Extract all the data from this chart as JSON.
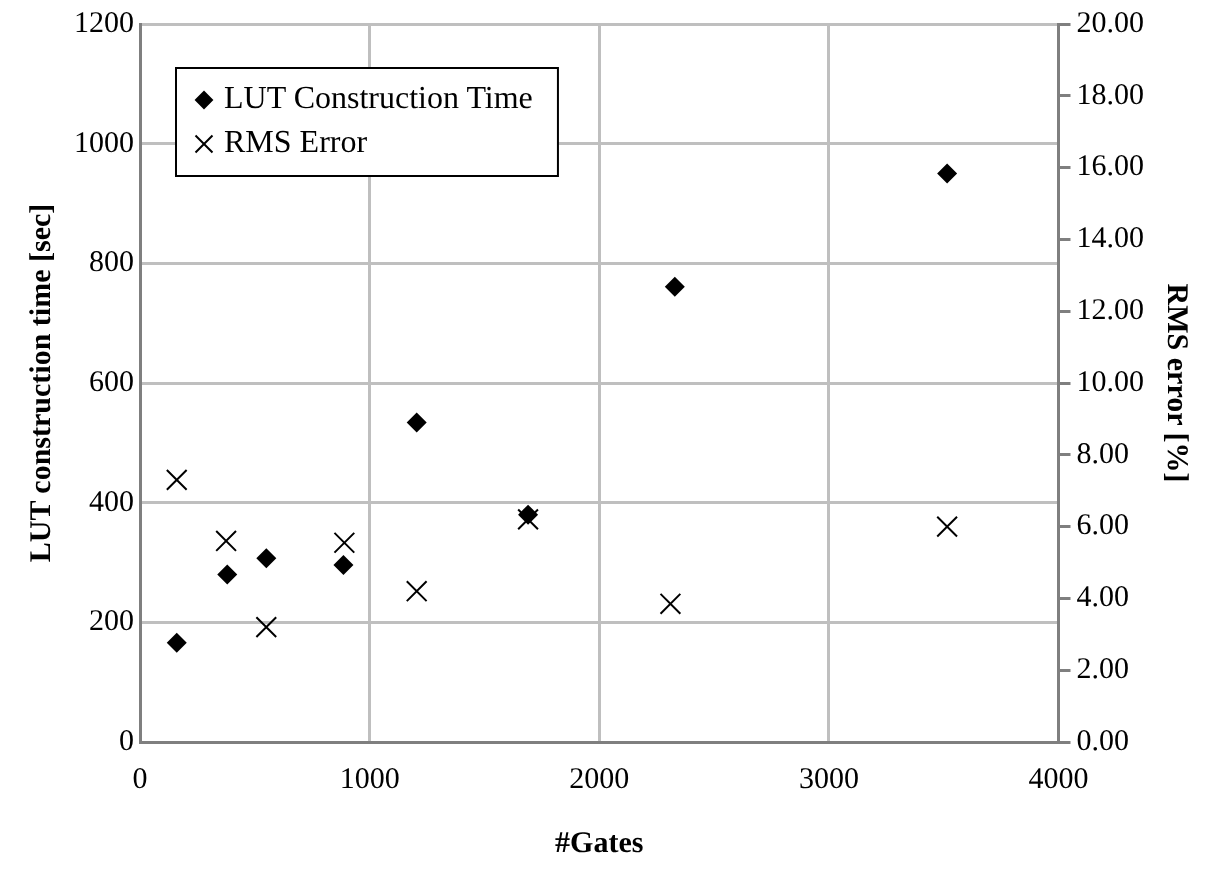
{
  "chart_data": {
    "type": "scatter",
    "xlabel": "#Gates",
    "ylabel": "LUT construction time [sec]",
    "y2label": "RMS error [%]",
    "xlim": [
      0,
      4000
    ],
    "xticks": [
      0,
      1000,
      2000,
      3000,
      4000
    ],
    "ylim": [
      0,
      1200
    ],
    "yticks": [
      0,
      200,
      400,
      600,
      800,
      1000,
      1200
    ],
    "y2lim": [
      0,
      20
    ],
    "y2ticks": [
      {
        "value": 0,
        "label": "0.00"
      },
      {
        "value": 2,
        "label": "2.00"
      },
      {
        "value": 4,
        "label": "4.00"
      },
      {
        "value": 6,
        "label": "6.00"
      },
      {
        "value": 8,
        "label": "8.00"
      },
      {
        "value": 10,
        "label": "10.00"
      },
      {
        "value": 12,
        "label": "12.00"
      },
      {
        "value": 14,
        "label": "14.00"
      },
      {
        "value": 16,
        "label": "16.00"
      },
      {
        "value": 18,
        "label": "18.00"
      },
      {
        "value": 20,
        "label": "20.00"
      }
    ],
    "grid": true,
    "legend": "top left",
    "series": [
      {
        "name": "LUT Construction Time",
        "color": "#000000",
        "marker": "diamond",
        "x": [
          160,
          380,
          550,
          886,
          1205,
          1690,
          2329,
          3515
        ],
        "values": [
          166,
          280,
          307,
          296,
          534,
          380,
          761,
          950
        ]
      },
      {
        "name": "RMS Error",
        "color": "#000000",
        "marker": "cross",
        "axis": "y2",
        "x": [
          160,
          375,
          550,
          890,
          1205,
          1690,
          2310,
          3515
        ],
        "values": [
          7.3,
          5.6,
          3.2,
          5.55,
          4.2,
          6.2,
          3.85,
          6.0
        ]
      }
    ]
  }
}
